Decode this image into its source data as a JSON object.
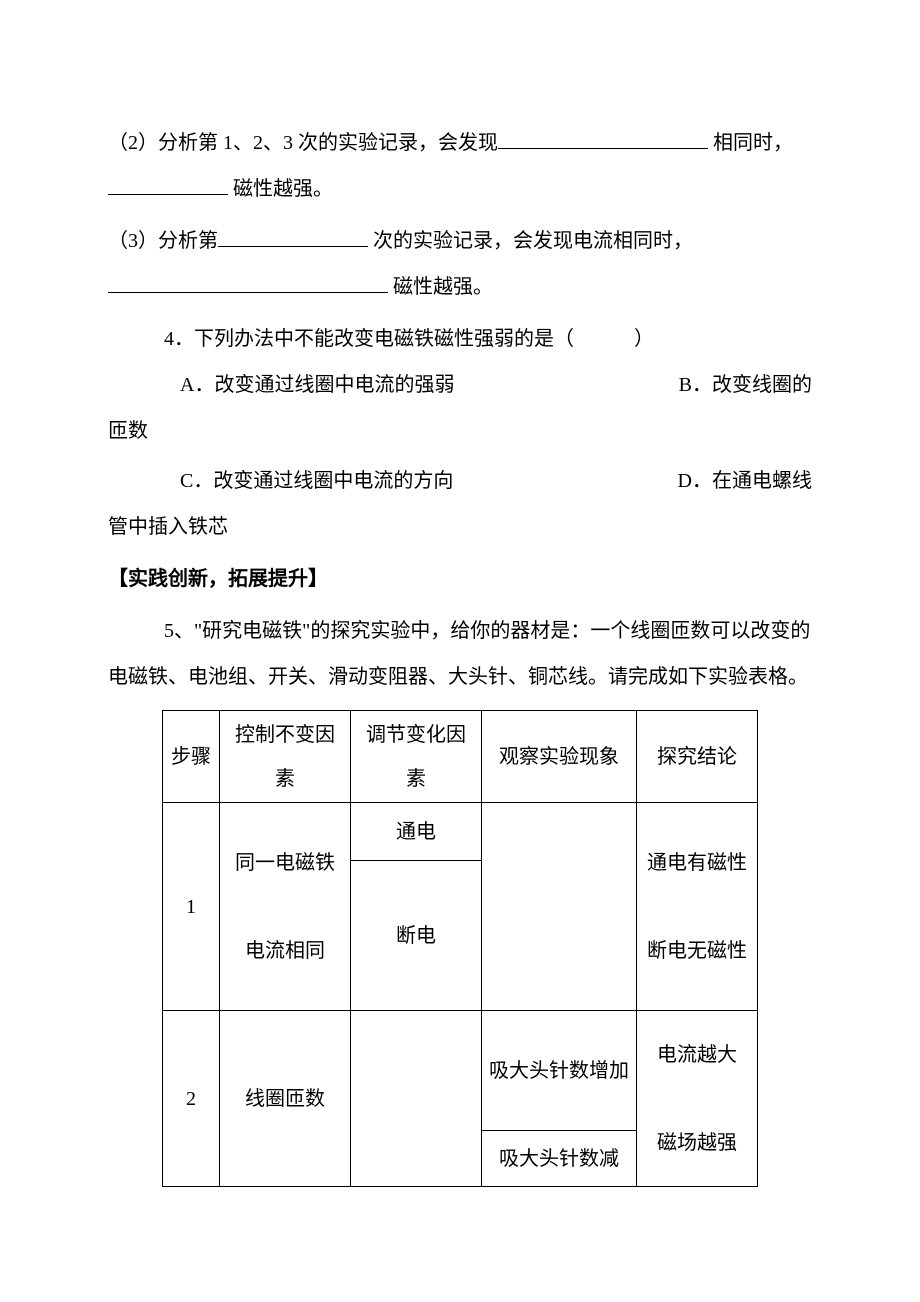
{
  "q2": {
    "prefix": "（2）分析第 1、2、3 次的实验记录，会发现",
    "mid": " 相同时，",
    "suffix": " 磁性越强。"
  },
  "q3": {
    "prefix": "（3）分析第",
    "mid": " 次的实验记录，会发现电流相同时，",
    "suffix": " 磁性越强。"
  },
  "q4": {
    "stem": "4．下列办法中不能改变电磁铁磁性强弱的是（　　　）",
    "A": "A．改变通过线圈中电流的强弱",
    "B": "B．改变线圈的",
    "B_tail": "匝数",
    "C": "C．改变通过线圈中电流的方向",
    "D": "D．在通电螺线",
    "D_tail": "管中插入铁芯"
  },
  "section_heading": "【实践创新，拓展提升】",
  "q5": {
    "line1": "5、\"研究电磁铁\"的探究实验中，给你的器材是：一个线圈匝数可以改变的",
    "line2": "电磁铁、电池组、开关、滑动变阻器、大头针、铜芯线。请完成如下实验表格。"
  },
  "table": {
    "headers": {
      "step": "步骤",
      "ctrl": "控制不变因素",
      "adj": "调节变化因素",
      "obs": "观察实验现象",
      "res": "探究结论"
    },
    "row1": {
      "step": "1",
      "ctrl_a": "同一电磁铁",
      "ctrl_b": "电流相同",
      "adj_a": "通电",
      "adj_b": "断电",
      "res_a": "通电有磁性",
      "res_b": "断电无磁性"
    },
    "row2": {
      "step": "2",
      "ctrl": "线圈匝数",
      "obs_a": "吸大头针数增加",
      "obs_b": "吸大头针数减",
      "res_a": "电流越大",
      "res_b": "磁场越强"
    }
  }
}
